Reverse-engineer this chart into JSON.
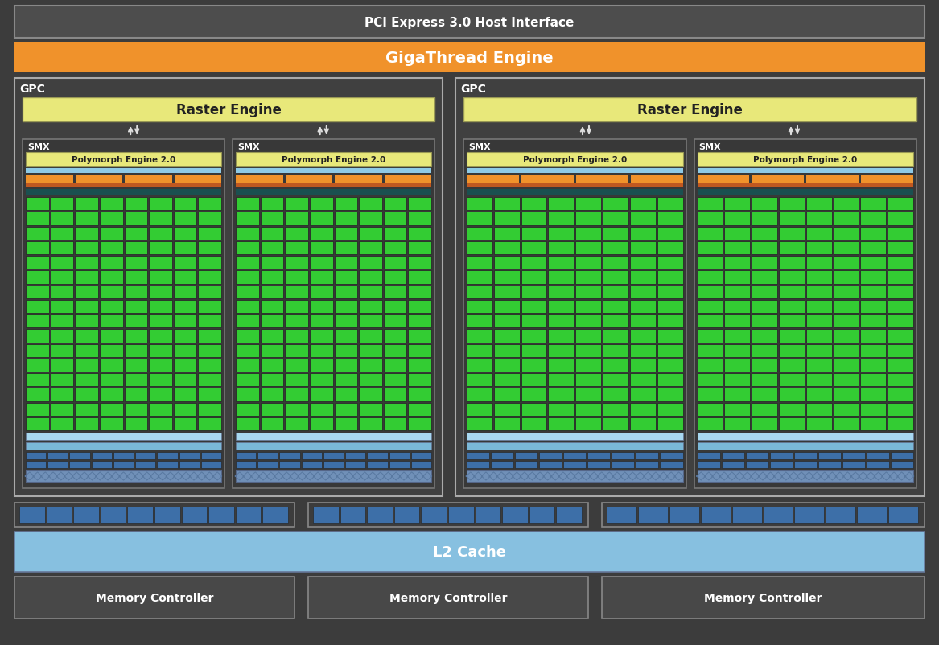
{
  "bg_color": "#3c3c3c",
  "fig_width": 11.67,
  "fig_height": 8.03,
  "pci_text": "PCI Express 3.0 Host Interface",
  "pci_bg": "#4d4d4d",
  "pci_border": "#888888",
  "gigathread_text": "GigaThread Engine",
  "gigathread_bg": "#f0922b",
  "gpc_bg": "#404040",
  "gpc_border": "#aaaaaa",
  "raster_bg": "#e8e87a",
  "raster_text_color": "#222222",
  "raster_text": "Raster Engine",
  "smx_border": "#777777",
  "smx_bg": "#383838",
  "polymorph_bg": "#e8e87a",
  "polymorph_text": "Polymorph Engine 2.0",
  "polymorph_text_color": "#222222",
  "light_blue_bar": "#8ecae6",
  "orange_bar": "#f0922b",
  "dark_orange_bar": "#c05820",
  "dark_teal_bar": "#1a5050",
  "green_cell": "#33cc33",
  "dark_bg_cell": "#2a2a2a",
  "light_blue_bottom1": "#a8d8f0",
  "light_blue_bottom2": "#7ab8d8",
  "blue_rect": "#3d6fa8",
  "diamond_bg": "#7090b8",
  "diamond_line": "#5878a0",
  "l2_bg": "#87c0e0",
  "l2_text": "L2 Cache",
  "mem_bg": "#484848",
  "mem_border": "#888888",
  "mem_text": "Memory Controller",
  "white": "#ffffff",
  "smx_label": "SMX",
  "gpc_label": "GPC",
  "arrow_color": "#dddddd"
}
